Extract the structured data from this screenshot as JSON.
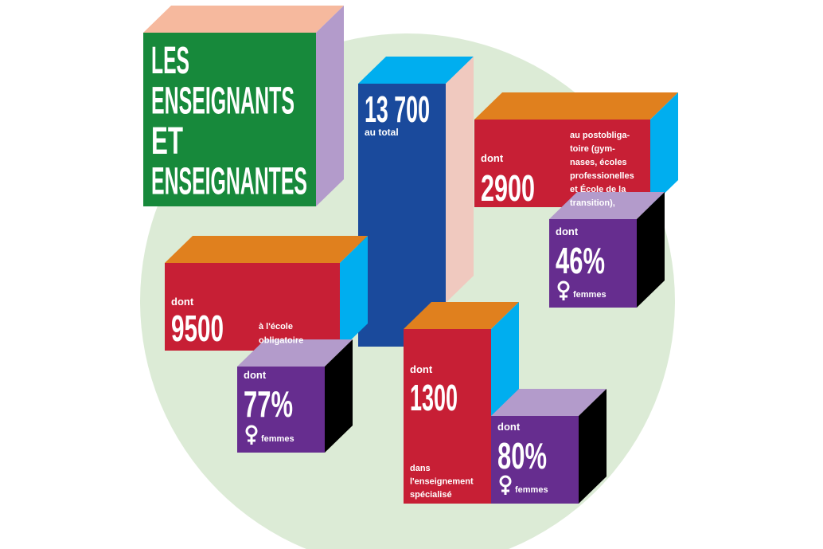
{
  "title": {
    "lines": [
      "LES",
      "ENSEIGNANTS",
      "ET",
      "ENSEIGNANTES"
    ]
  },
  "total": {
    "number": "13 700",
    "label": "au total"
  },
  "groups": [
    {
      "prefix": "dont",
      "number": "9500",
      "description": [
        "à l'école",
        "obligatoire"
      ],
      "women": {
        "prefix": "dont",
        "share": "77%",
        "label": "femmes"
      }
    },
    {
      "prefix": "dont",
      "number": "1300",
      "description": [
        "dans",
        "l'enseignement",
        "spécialisé"
      ],
      "women": {
        "prefix": "dont",
        "share": "80%",
        "label": "femmes"
      }
    },
    {
      "prefix": "dont",
      "number": "2900",
      "description": [
        "au postobliga-",
        "toire (gym-",
        "nases, écoles",
        "professionelles",
        "et École de la",
        "transition),"
      ],
      "women": {
        "prefix": "dont",
        "share": "46%",
        "label": "femmes"
      }
    }
  ]
}
